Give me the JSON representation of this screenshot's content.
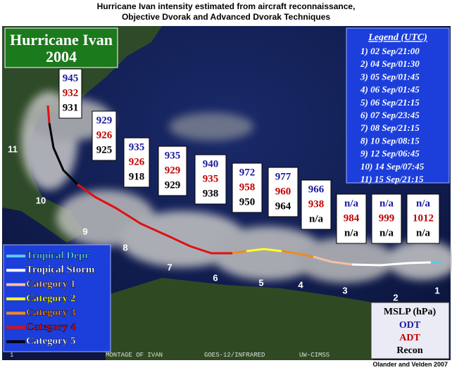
{
  "header": {
    "title_line1": "Hurricane Ivan intensity estimated from aircraft reconnaissance,",
    "title_line2": "Objective Dvorak and Advanced Dvorak Techniques"
  },
  "storm_title": {
    "line1": "Hurricane Ivan",
    "line2": "2004"
  },
  "legend_utc": {
    "title": "Legend (UTC)",
    "entries": [
      "1) 02 Sep/21:00",
      "2) 04 Sep/01:30",
      "3) 05 Sep/01:45",
      "4) 06 Sep/01:45",
      "5) 06 Sep/21:15",
      "6) 07 Sep/23:45",
      "7) 08 Sep/21:15",
      "8) 10 Sep/08:15",
      "9) 12 Sep/06:45",
      "10) 14 Sep/07:45",
      "11) 15 Sep/21:15"
    ]
  },
  "intensity_boxes": [
    {
      "odt": 945,
      "adt": 932,
      "recon": 931
    },
    {
      "odt": 929,
      "adt": 926,
      "recon": 925
    },
    {
      "odt": 935,
      "adt": 926,
      "recon": 918
    },
    {
      "odt": 935,
      "adt": 929,
      "recon": 929
    },
    {
      "odt": 940,
      "adt": 935,
      "recon": 938
    },
    {
      "odt": 972,
      "adt": 958,
      "recon": 950
    },
    {
      "odt": 977,
      "adt": 960,
      "recon": 964
    },
    {
      "odt": 966,
      "adt": 938,
      "recon": "n/a"
    },
    {
      "odt": "n/a",
      "adt": 984,
      "recon": "n/a"
    },
    {
      "odt": "n/a",
      "adt": 999,
      "recon": "n/a"
    },
    {
      "odt": "n/a",
      "adt": 1012,
      "recon": "n/a"
    }
  ],
  "track_labels": [
    "1",
    "2",
    "3",
    "4",
    "5",
    "6",
    "7",
    "8",
    "9",
    "10",
    "11"
  ],
  "category_legend": [
    {
      "name": "Tropical Depr",
      "color": "#5cc8ec"
    },
    {
      "name": "Tropical Storm",
      "color": "#ffffff"
    },
    {
      "name": "Category 1",
      "color": "#f4c0a0"
    },
    {
      "name": "Category 2",
      "color": "#ffff20"
    },
    {
      "name": "Category 3",
      "color": "#f08a20"
    },
    {
      "name": "Category 4",
      "color": "#e01010"
    },
    {
      "name": "Category 5",
      "color": "#000000"
    }
  ],
  "value_key": {
    "header": "MSLP (hPa)",
    "odt": "ODT",
    "adt": "ADT",
    "recon": "Recon"
  },
  "image_strip": {
    "frame": "1",
    "montage": "MONTAGE OF IVAN",
    "sensor": "GOES-12/INFRARED",
    "source": "UW-CIMSS"
  },
  "credit": "Olander and Velden 2007"
}
